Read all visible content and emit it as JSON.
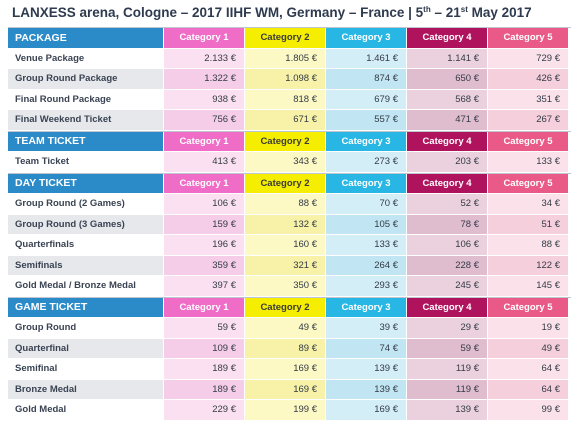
{
  "title": {
    "prefix": "LANXESS arena, Cologne – 2017 IIHF WM, Germany – France | 5",
    "sup1": "th",
    "middle": " – 21",
    "sup2": "st",
    "suffix": " May 2017"
  },
  "colors": {
    "header_blue": "#2b8bc9",
    "category_1": "#ef6cc7",
    "category_2": "#f6ee00",
    "category_3": "#28b7e4",
    "category_4": "#b0135e",
    "category_5": "#ea5a88"
  },
  "sections": [
    {
      "title": "PACKAGE",
      "categories": [
        "Category 1",
        "Category 2",
        "Category 3",
        "Category 4",
        "Category 5"
      ],
      "rows": [
        {
          "label": "Venue Package",
          "values": [
            "2.133 €",
            "1.805 €",
            "1.461 €",
            "1.141 €",
            "729 €"
          ]
        },
        {
          "label": "Group Round Package",
          "values": [
            "1.322 €",
            "1.098 €",
            "874 €",
            "650 €",
            "426 €"
          ]
        },
        {
          "label": "Final Round Package",
          "values": [
            "938 €",
            "818 €",
            "679 €",
            "568 €",
            "351 €"
          ]
        },
        {
          "label": "Final Weekend Ticket",
          "values": [
            "756 €",
            "671 €",
            "557 €",
            "471 €",
            "267 €"
          ]
        }
      ]
    },
    {
      "title": "TEAM TICKET",
      "categories": [
        "Category 1",
        "Category 2",
        "Category 3",
        "Category 4",
        "Category 5"
      ],
      "rows": [
        {
          "label": "Team Ticket",
          "values": [
            "413 €",
            "343 €",
            "273 €",
            "203 €",
            "133 €"
          ]
        }
      ]
    },
    {
      "title": "DAY TICKET",
      "categories": [
        "Category 1",
        "Category 2",
        "Category 3",
        "Category 4",
        "Category 5"
      ],
      "rows": [
        {
          "label": "Group Round (2 Games)",
          "values": [
            "106 €",
            "88 €",
            "70 €",
            "52 €",
            "34 €"
          ]
        },
        {
          "label": "Group Round (3 Games)",
          "values": [
            "159 €",
            "132 €",
            "105 €",
            "78 €",
            "51 €"
          ]
        },
        {
          "label": "Quarterfinals",
          "values": [
            "196 €",
            "160 €",
            "133 €",
            "106 €",
            "88 €"
          ]
        },
        {
          "label": "Semifinals",
          "values": [
            "359 €",
            "321 €",
            "264 €",
            "228 €",
            "122 €"
          ]
        },
        {
          "label": "Gold Medal / Bronze Medal",
          "values": [
            "397 €",
            "350 €",
            "293 €",
            "245 €",
            "145 €"
          ]
        }
      ]
    },
    {
      "title": "GAME TICKET",
      "categories": [
        "Category 1",
        "Category 2",
        "Category 3",
        "Category 4",
        "Category 5"
      ],
      "rows": [
        {
          "label": "Group Round",
          "values": [
            "59 €",
            "49 €",
            "39 €",
            "29 €",
            "19 €"
          ]
        },
        {
          "label": "Quarterfinal",
          "values": [
            "109 €",
            "89 €",
            "74 €",
            "59 €",
            "49 €"
          ]
        },
        {
          "label": "Semifinal",
          "values": [
            "189 €",
            "169 €",
            "139 €",
            "119 €",
            "64 €"
          ]
        },
        {
          "label": "Bronze Medal",
          "values": [
            "189 €",
            "169 €",
            "139 €",
            "119 €",
            "64 €"
          ]
        },
        {
          "label": "Gold Medal",
          "values": [
            "229 €",
            "199 €",
            "169 €",
            "139 €",
            "99 €"
          ]
        }
      ]
    }
  ]
}
